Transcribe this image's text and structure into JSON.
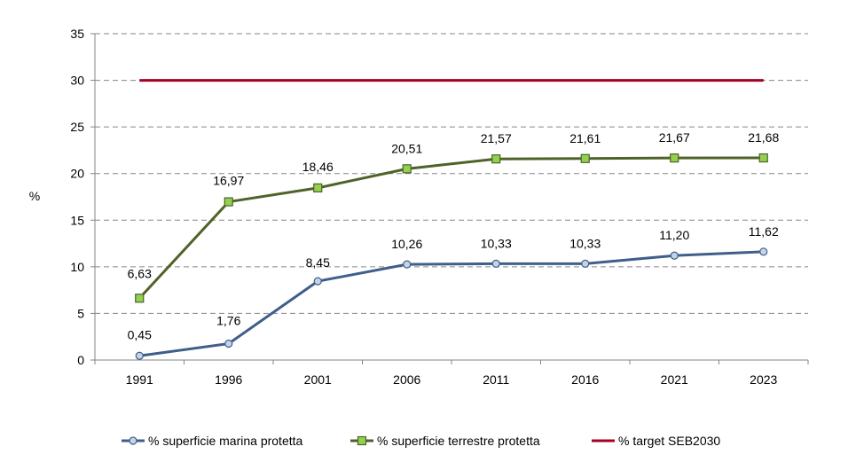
{
  "chart_data": {
    "type": "line",
    "categories": [
      "1991",
      "1996",
      "2001",
      "2006",
      "2011",
      "2016",
      "2021",
      "2023"
    ],
    "ylabel": "%",
    "ylim": [
      0,
      35
    ],
    "yticks": [
      0,
      5,
      10,
      15,
      20,
      25,
      30,
      35
    ],
    "grid": "horizontal dashed",
    "legend_position": "bottom",
    "series": [
      {
        "name": "% superficie marina protetta",
        "values": [
          0.45,
          1.76,
          8.45,
          10.26,
          10.33,
          10.33,
          11.2,
          11.62
        ],
        "labels": [
          "0,45",
          "1,76",
          "8,45",
          "10,26",
          "10,33",
          "10,33",
          "11,20",
          "11,62"
        ],
        "color": "#3F5F8A",
        "marker": "circle",
        "marker_fill": "#C5D3E8"
      },
      {
        "name": "% superficie terrestre protetta",
        "values": [
          6.63,
          16.97,
          18.46,
          20.51,
          21.57,
          21.61,
          21.67,
          21.68
        ],
        "labels": [
          "6,63",
          "16,97",
          "18,46",
          "20,51",
          "21,57",
          "21,61",
          "21,67",
          "21,68"
        ],
        "color": "#4F6228",
        "marker": "square",
        "marker_fill": "#92D050"
      },
      {
        "name": "% target SEB2030",
        "values": [
          30,
          30,
          30,
          30,
          30,
          30,
          30,
          30
        ],
        "color": "#A50021",
        "marker": "none"
      }
    ]
  }
}
